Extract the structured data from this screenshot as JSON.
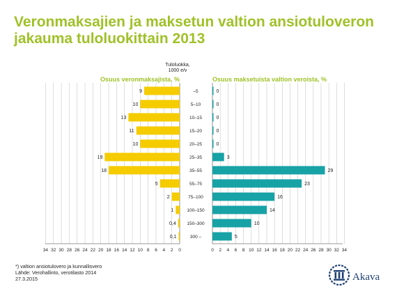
{
  "title": {
    "line1": "Veronmaksajien ja maksetun valtion ansiotuloveron",
    "line2": "jakauma tuloluokittain 2013"
  },
  "footer": {
    "note": "*) valtion ansiotulovero ja kunnallisvero",
    "source": "Lähde: Verohallinto, verotilasto 2014",
    "date": "27.3.2015"
  },
  "logo": {
    "text": "Akava",
    "icon": "columns-emblem-icon"
  },
  "colors": {
    "left_bar": "#f5cc00",
    "right_bar": "#17a2a6",
    "title": "#9fc128",
    "grid": "#b3b3b3",
    "logo": "#1d3f73"
  },
  "chart_data": {
    "type": "bar",
    "orientation": "horizontal-butterfly",
    "category_header": [
      "Tuloluokka,",
      "1000 e/v"
    ],
    "categories": [
      "–5",
      "5–10",
      "10–15",
      "15–20",
      "20–25",
      "25–35",
      "35–55",
      "55–75",
      "75–100",
      "100–150",
      "150–300",
      "300 –"
    ],
    "series": [
      {
        "name": "Osuus veronmaksajista, %",
        "values": [
          9,
          10,
          13,
          11,
          10,
          19,
          18,
          5,
          2,
          1,
          0.4,
          0.1
        ],
        "labels": [
          "9",
          "10",
          "13",
          "11",
          "10",
          "19",
          "18",
          "5",
          "2",
          "1",
          "0,4",
          "0,1"
        ],
        "direction": "left",
        "color": "#f5cc00"
      },
      {
        "name": "Osuus maksetuista valtion veroista, %",
        "values": [
          0,
          0,
          0,
          0,
          0,
          3,
          29,
          23,
          16,
          14,
          10,
          5
        ],
        "labels": [
          "0",
          "0",
          "0",
          "0",
          "0",
          "3",
          "29",
          "23",
          "16",
          "14",
          "10",
          "5"
        ],
        "direction": "right",
        "color": "#17a2a6"
      }
    ],
    "left_axis_ticks": [
      "34",
      "32",
      "30",
      "28",
      "26",
      "24",
      "22",
      "20",
      "18",
      "16",
      "14",
      "12",
      "10",
      "8",
      "6",
      "4",
      "2",
      "0"
    ],
    "right_axis_ticks": [
      "0",
      "2",
      "4",
      "6",
      "8",
      "10",
      "12",
      "14",
      "16",
      "18",
      "20",
      "22",
      "24",
      "26",
      "28",
      "30",
      "32",
      "34"
    ],
    "xlim": [
      0,
      34
    ],
    "grid": true
  }
}
